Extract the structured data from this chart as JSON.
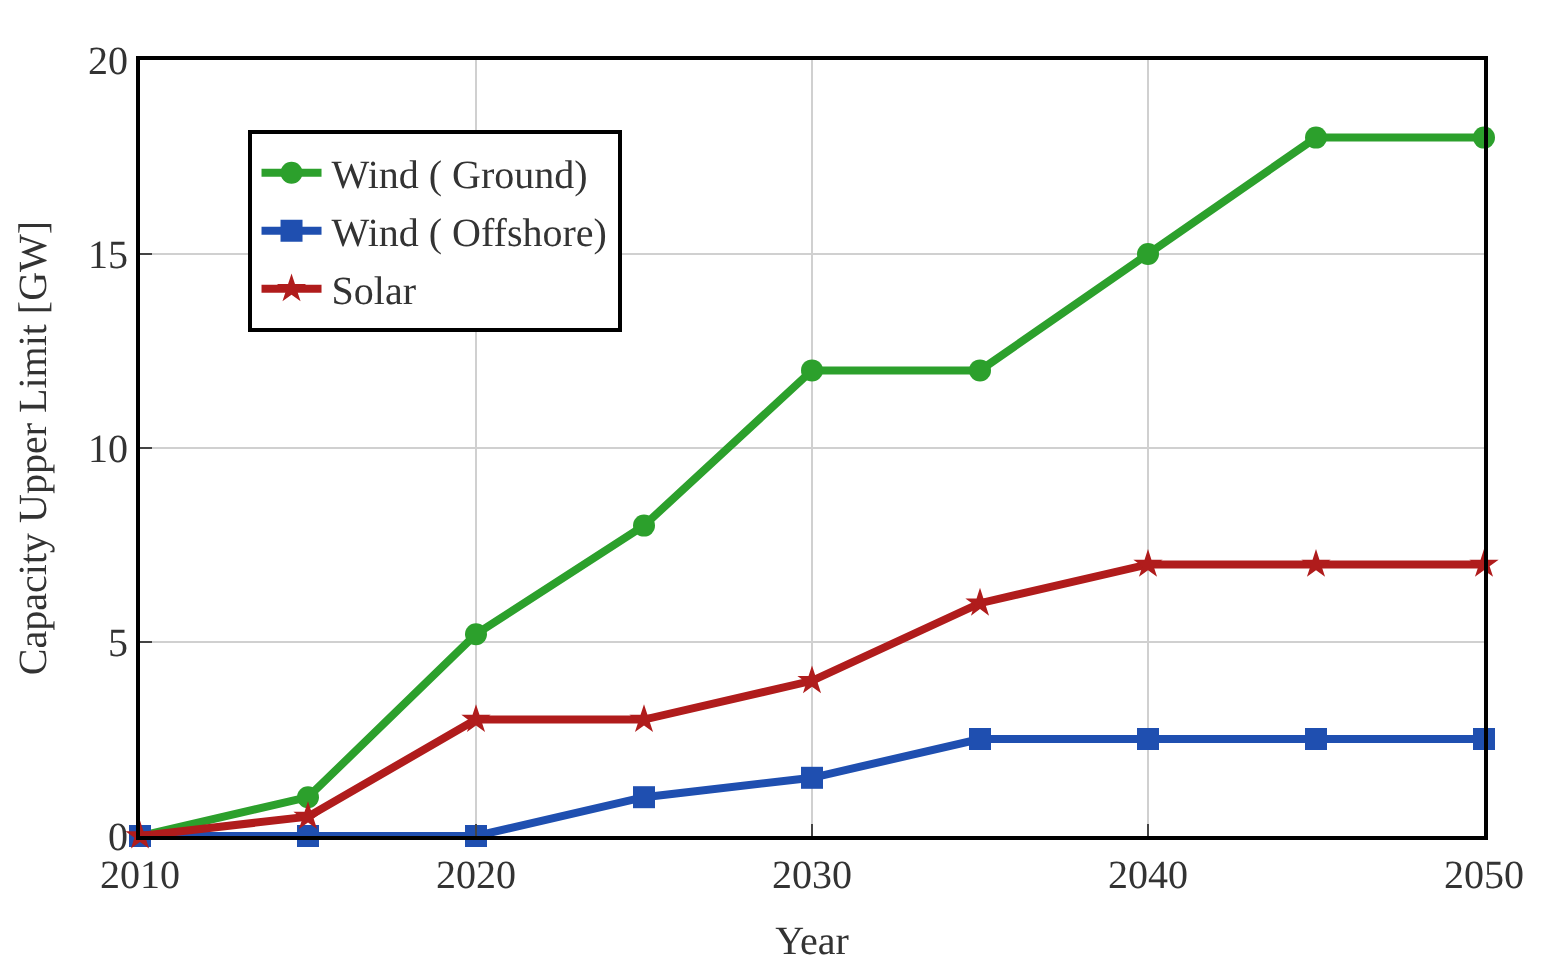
{
  "chart_data": {
    "type": "line",
    "xlabel": "Year",
    "ylabel": "Capacity Upper Limit [GW]",
    "x": [
      2010,
      2015,
      2020,
      2025,
      2030,
      2035,
      2040,
      2045,
      2050
    ],
    "series": [
      {
        "name": "Wind ( Ground)",
        "color": "#2ca02c",
        "marker": "circle",
        "values": [
          0,
          1,
          5.2,
          8,
          12,
          12,
          15,
          18,
          18
        ]
      },
      {
        "name": "Wind ( Offshore)",
        "color": "#1f4fb0",
        "marker": "square",
        "values": [
          0,
          0,
          0,
          1,
          1.5,
          2.5,
          2.5,
          2.5,
          2.5
        ]
      },
      {
        "name": "Solar",
        "color": "#b01c1c",
        "marker": "star",
        "values": [
          0,
          0.5,
          3,
          3,
          4,
          6,
          7,
          7,
          7
        ]
      }
    ],
    "xlim": [
      2010,
      2050
    ],
    "xticks": [
      2010,
      2020,
      2030,
      2040,
      2050
    ],
    "ylim": [
      0,
      20
    ],
    "yticks": [
      0,
      5,
      10,
      15,
      20
    ],
    "grid": true,
    "legend": "top left",
    "line_style": "solid"
  }
}
